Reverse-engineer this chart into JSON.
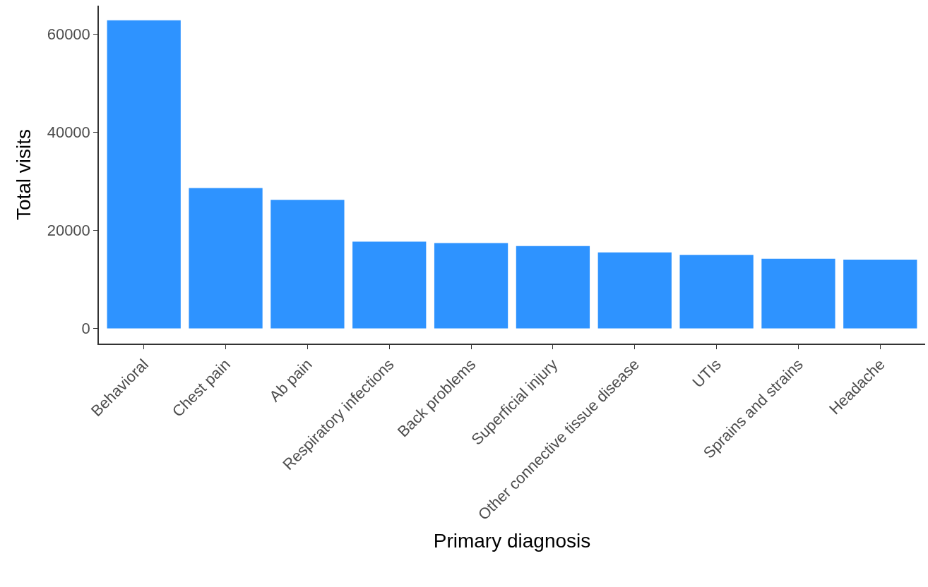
{
  "chart_data": {
    "type": "bar",
    "xlabel": "Primary diagnosis",
    "ylabel": "Total visits",
    "categories": [
      "Behavioral",
      "Chest pain",
      "Ab pain",
      "Respiratory infections",
      "Back problems",
      "Superficial injury",
      "Other connective tissue disease",
      "UTIs",
      "Sprains and strains",
      "Headache"
    ],
    "values": [
      62800,
      28600,
      26200,
      17700,
      17400,
      16800,
      15500,
      15000,
      14200,
      14000
    ],
    "color": "#2e93ff",
    "ylim": [
      -3100,
      65800
    ],
    "yticks": [
      0,
      20000,
      40000,
      60000
    ]
  }
}
